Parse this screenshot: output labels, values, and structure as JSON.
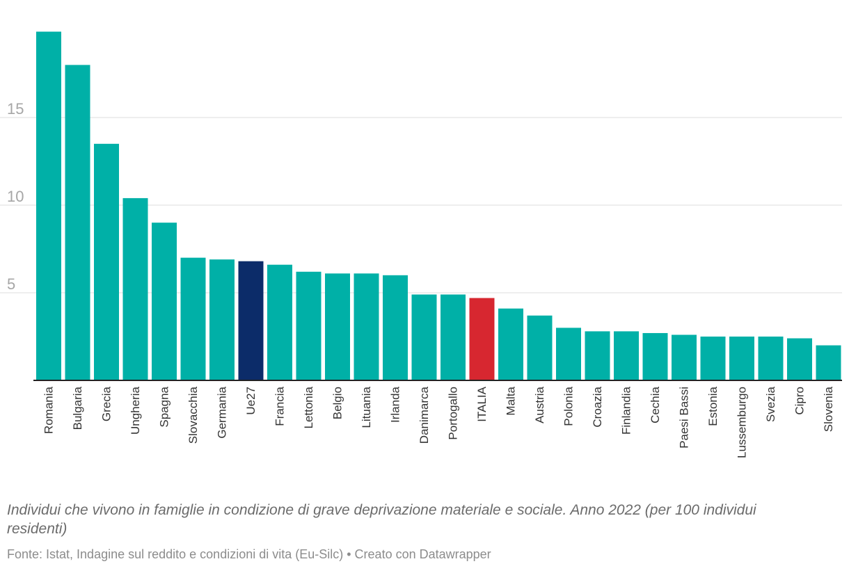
{
  "colors": {
    "default": "#00b0a7",
    "highlight_eu": "#0c2c69",
    "highlight_italy": "#d72730",
    "grid": "#dedede",
    "axis": "#222222"
  },
  "chart_data": {
    "type": "bar",
    "title": "",
    "xlabel": "",
    "ylabel": "",
    "ylim": [
      0,
      20
    ],
    "yticks": [
      5,
      10,
      15
    ],
    "categories": [
      "Romania",
      "Bulgaria",
      "Grecia",
      "Ungheria",
      "Spagna",
      "Slovacchia",
      "Germania",
      "Ue27",
      "Francia",
      "Lettonia",
      "Belgio",
      "Lituania",
      "Irlanda",
      "Danimarca",
      "Portogallo",
      "ITALIA",
      "Malta",
      "Austria",
      "Polonia",
      "Croazia",
      "Finlandia",
      "Cechia",
      "Paesi Bassi",
      "Estonia",
      "Lussemburgo",
      "Svezia",
      "Cipro",
      "Slovenia"
    ],
    "values": [
      19.9,
      18.0,
      13.5,
      10.4,
      9.0,
      7.0,
      6.9,
      6.8,
      6.6,
      6.2,
      6.1,
      6.1,
      6.0,
      4.9,
      4.9,
      4.7,
      4.1,
      3.7,
      3.0,
      2.8,
      2.8,
      2.7,
      2.6,
      2.5,
      2.5,
      2.5,
      2.4,
      2.0
    ],
    "highlights": {
      "Ue27": "highlight_eu",
      "ITALIA": "highlight_italy"
    }
  },
  "caption": "Individui che vivono in famiglie in condizione di grave deprivazione materiale e sociale. Anno 2022 (per 100 individui residenti)",
  "source": "Fonte: Istat, Indagine sul reddito e condizioni di vita (Eu-Silc) • Creato con Datawrapper"
}
